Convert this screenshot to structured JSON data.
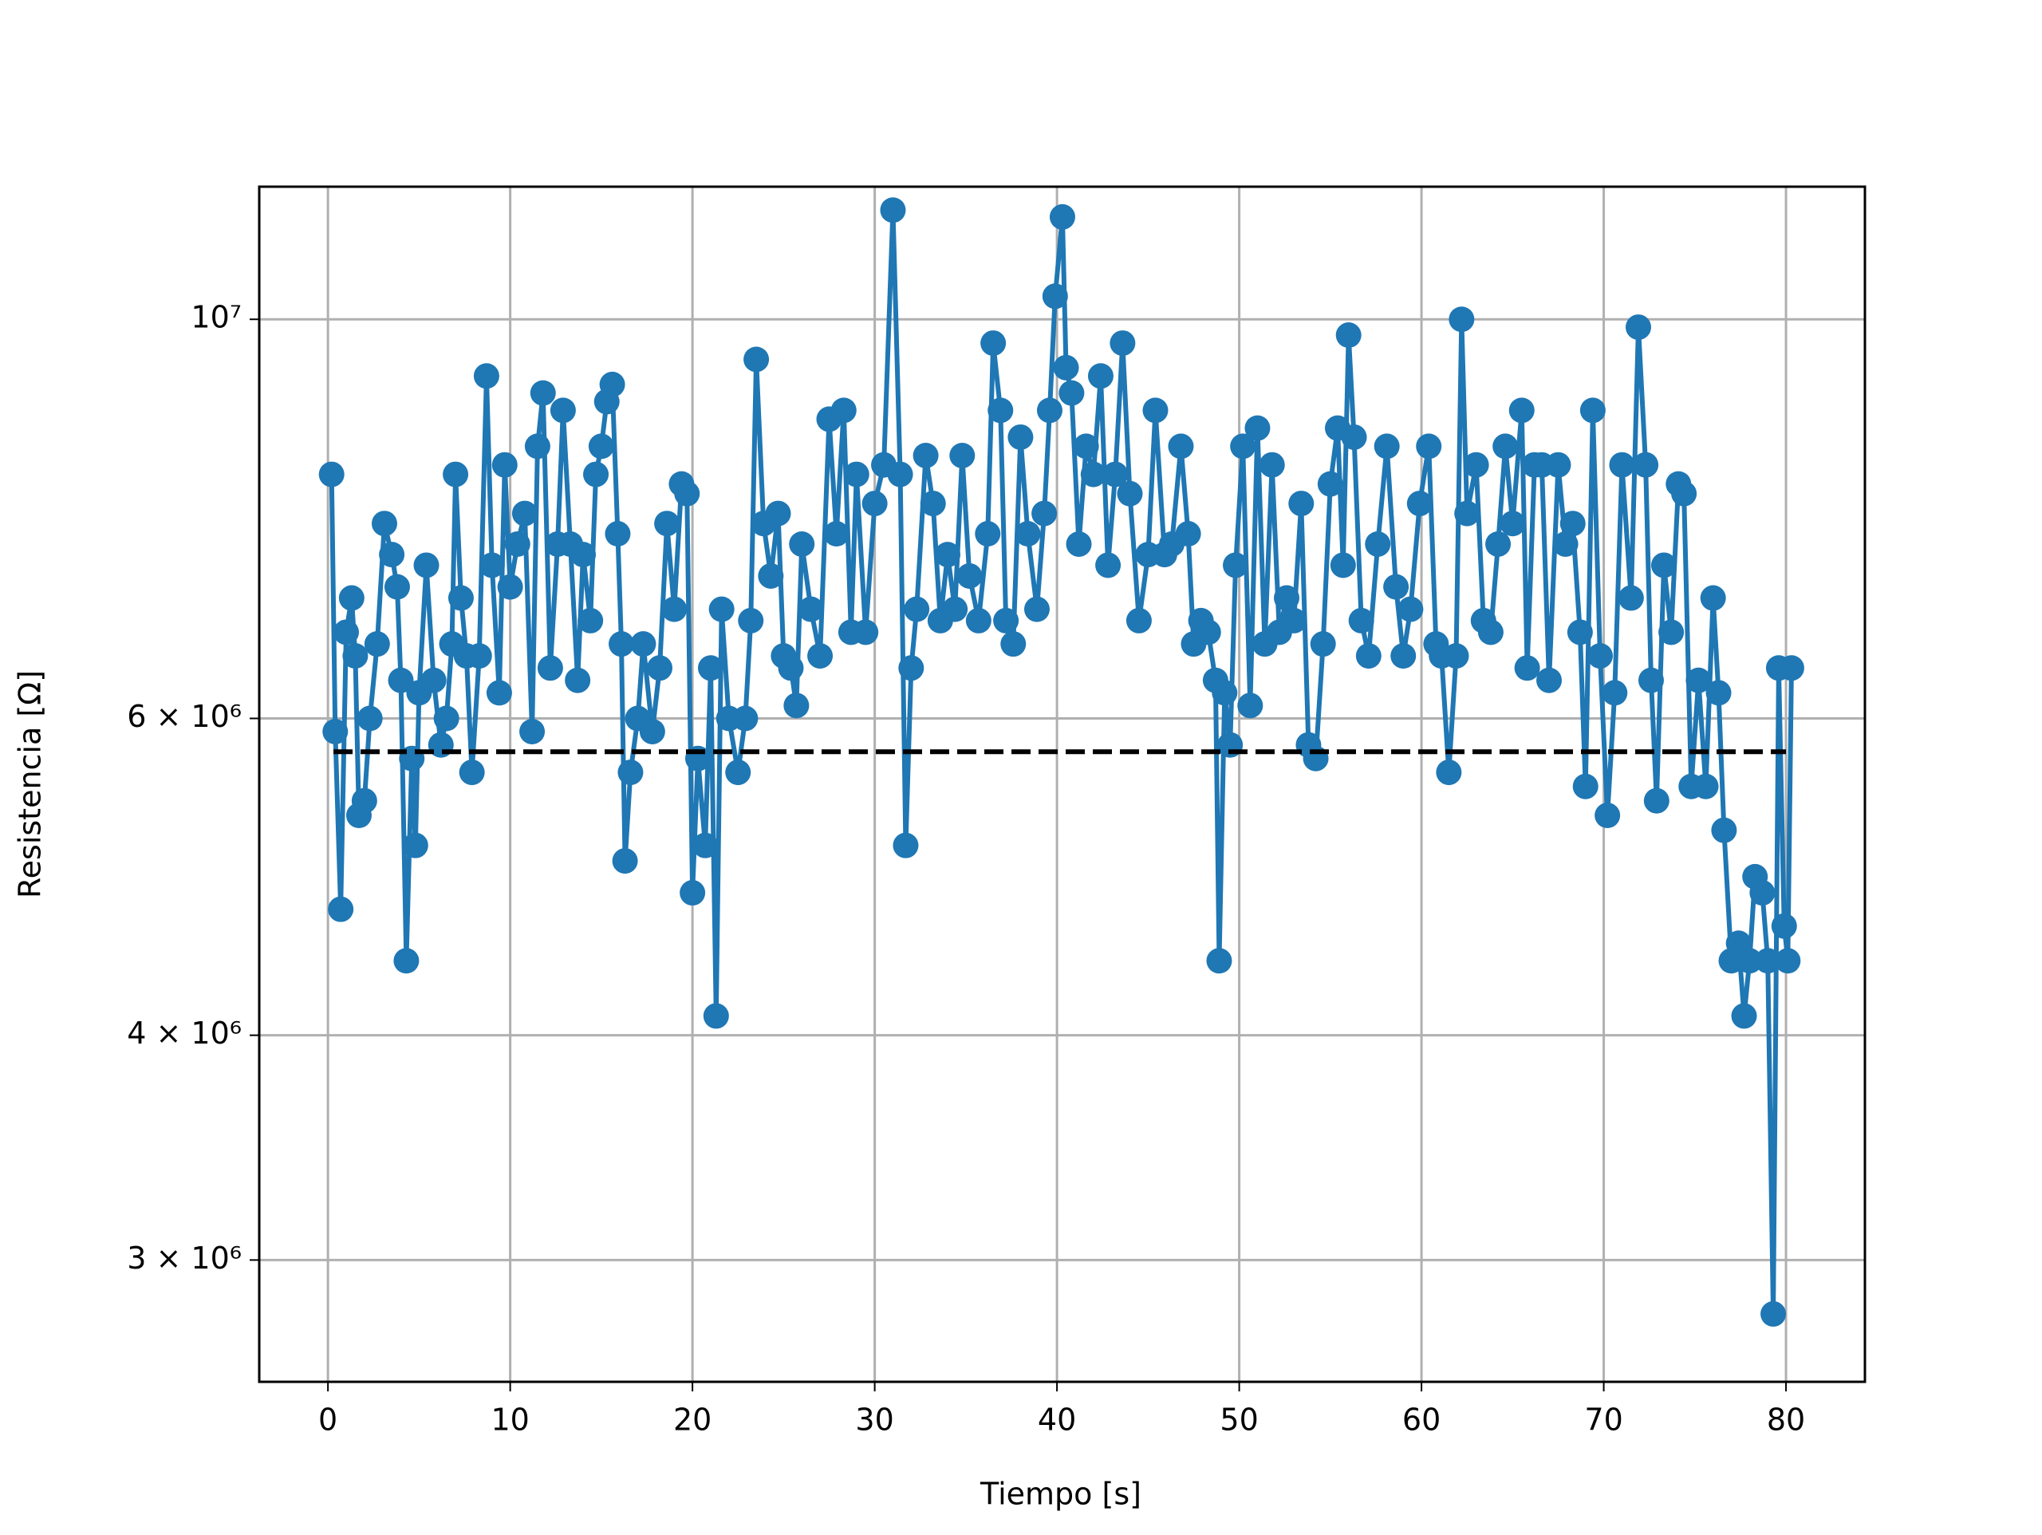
{
  "chart_data": {
    "type": "line",
    "xlabel": "Tiempo [s]",
    "ylabel": "Resistencia [Ω]",
    "log_y": true,
    "grid": true,
    "xlim": [
      -3.77,
      84.33
    ],
    "xticks": [
      0,
      10,
      20,
      30,
      40,
      50,
      60,
      70,
      80
    ],
    "ylim": [
      2567000.0,
      11850000.0
    ],
    "yticks": [
      {
        "value": 3000000.0,
        "label": "3 × 10⁶"
      },
      {
        "value": 4000000.0,
        "label": "4 × 10⁶"
      },
      {
        "value": 6000000.0,
        "label": "6 × 10⁶"
      },
      {
        "value": 10000000.0,
        "label": "10⁷"
      }
    ],
    "x": [
      0.2,
      0.4,
      0.7,
      1.0,
      1.3,
      1.5,
      1.7,
      2.0,
      2.3,
      2.7,
      3.1,
      3.5,
      3.8,
      4.0,
      4.3,
      4.6,
      4.8,
      5.0,
      5.4,
      5.8,
      6.2,
      6.5,
      6.8,
      7.0,
      7.3,
      7.6,
      7.9,
      8.3,
      8.7,
      9.0,
      9.4,
      9.7,
      10.0,
      10.4,
      10.8,
      11.2,
      11.5,
      11.8,
      12.2,
      12.6,
      12.9,
      13.3,
      13.7,
      14.0,
      14.4,
      14.7,
      15.0,
      15.3,
      15.6,
      15.9,
      16.1,
      16.3,
      16.6,
      17.0,
      17.3,
      17.8,
      18.2,
      18.6,
      19.0,
      19.4,
      19.7,
      20.0,
      20.3,
      20.7,
      21.0,
      21.3,
      21.6,
      22.0,
      22.5,
      22.9,
      23.2,
      23.5,
      23.9,
      24.3,
      24.7,
      25.0,
      25.4,
      25.7,
      26.0,
      26.5,
      27.0,
      27.5,
      27.9,
      28.3,
      28.7,
      29.0,
      29.5,
      30.0,
      30.5,
      31.0,
      31.4,
      31.7,
      32.0,
      32.3,
      32.8,
      33.2,
      33.6,
      34.0,
      34.4,
      34.8,
      35.2,
      35.7,
      36.2,
      36.5,
      36.9,
      37.2,
      37.6,
      38.0,
      38.4,
      38.9,
      39.3,
      39.6,
      39.9,
      40.3,
      40.5,
      40.8,
      41.2,
      41.6,
      42.0,
      42.4,
      42.8,
      43.2,
      43.6,
      44.0,
      44.5,
      45.0,
      45.4,
      45.9,
      46.3,
      46.8,
      47.2,
      47.5,
      47.9,
      48.3,
      48.7,
      48.9,
      49.2,
      49.5,
      49.8,
      50.2,
      50.6,
      51.0,
      51.4,
      51.8,
      52.2,
      52.6,
      53.0,
      53.4,
      53.8,
      54.2,
      54.6,
      55.0,
      55.4,
      55.7,
      56.0,
      56.3,
      56.7,
      57.1,
      57.6,
      58.1,
      58.6,
      59.0,
      59.4,
      59.9,
      60.4,
      60.8,
      61.1,
      61.5,
      61.9,
      62.2,
      62.5,
      63.0,
      63.4,
      63.8,
      64.2,
      64.6,
      65.0,
      65.5,
      65.8,
      66.2,
      66.6,
      67.0,
      67.5,
      67.9,
      68.3,
      68.7,
      69.0,
      69.4,
      69.8,
      70.2,
      70.6,
      71.0,
      71.5,
      71.9,
      72.3,
      72.6,
      72.9,
      73.3,
      73.7,
      74.1,
      74.4,
      74.8,
      75.2,
      75.6,
      76.0,
      76.3,
      76.6,
      77.0,
      77.4,
      77.7,
      78.0,
      78.3,
      78.7,
      79.0,
      79.3,
      79.6,
      79.9,
      80.1,
      80.3
    ],
    "series": [
      {
        "color": "#1f77b4",
        "values": [
          8200000.0,
          5900000.0,
          4700000.0,
          6700000.0,
          7000000.0,
          6500000.0,
          5300000.0,
          5400000.0,
          6000000.0,
          6600000.0,
          7700000.0,
          7400000.0,
          7100000.0,
          6300000.0,
          4400000.0,
          5700000.0,
          5100000.0,
          6200000.0,
          7300000.0,
          6300000.0,
          5800000.0,
          6000000.0,
          6600000.0,
          8200000.0,
          7000000.0,
          6500000.0,
          5600000.0,
          6500000.0,
          9300000.0,
          7300000.0,
          6200000.0,
          8300000.0,
          7100000.0,
          7500000.0,
          7800000.0,
          5900000.0,
          8500000.0,
          9100000.0,
          6400000.0,
          7500000.0,
          8900000.0,
          7500000.0,
          6300000.0,
          7400000.0,
          6800000.0,
          8200000.0,
          8500000.0,
          9000000.0,
          9200000.0,
          7600000.0,
          6600000.0,
          5000000.0,
          5600000.0,
          6000000.0,
          6600000.0,
          5900000.0,
          6400000.0,
          7700000.0,
          6900000.0,
          8100000.0,
          8000000.0,
          4800000.0,
          5700000.0,
          5100000.0,
          6400000.0,
          4100000.0,
          6900000.0,
          6000000.0,
          5600000.0,
          6000000.0,
          6800000.0,
          9500000.0,
          7700000.0,
          7200000.0,
          7800000.0,
          6500000.0,
          6400000.0,
          6100000.0,
          7500000.0,
          6900000.0,
          6500000.0,
          8800000.0,
          7600000.0,
          8900000.0,
          6700000.0,
          8200000.0,
          6700000.0,
          7900000.0,
          8300000.0,
          11500000.0,
          8200000.0,
          5100000.0,
          6400000.0,
          6900000.0,
          8400000.0,
          7900000.0,
          6800000.0,
          7400000.0,
          6900000.0,
          8400000.0,
          7200000.0,
          6800000.0,
          7600000.0,
          9700000.0,
          8900000.0,
          6800000.0,
          6600000.0,
          8600000.0,
          7600000.0,
          6900000.0,
          7800000.0,
          8900000.0,
          10300000.0,
          11400000.0,
          9400000.0,
          9100000.0,
          7500000.0,
          8500000.0,
          8200000.0,
          9300000.0,
          7300000.0,
          8200000.0,
          9700000.0,
          8000000.0,
          6800000.0,
          7400000.0,
          8900000.0,
          7400000.0,
          7500000.0,
          8500000.0,
          7600000.0,
          6600000.0,
          6800000.0,
          6700000.0,
          6300000.0,
          4400000.0,
          6200000.0,
          5800000.0,
          7300000.0,
          8500000.0,
          6100000.0,
          8700000.0,
          6600000.0,
          8300000.0,
          6700000.0,
          7000000.0,
          6800000.0,
          7900000.0,
          5800000.0,
          5700000.0,
          6600000.0,
          8100000.0,
          8700000.0,
          7300000.0,
          9800000.0,
          8600000.0,
          6800000.0,
          6500000.0,
          7500000.0,
          8500000.0,
          7100000.0,
          6500000.0,
          6900000.0,
          7900000.0,
          8500000.0,
          6600000.0,
          6500000.0,
          5600000.0,
          6500000.0,
          10000000.0,
          7800000.0,
          8300000.0,
          6800000.0,
          6700000.0,
          7500000.0,
          8500000.0,
          7700000.0,
          8900000.0,
          6400000.0,
          8300000.0,
          8300000.0,
          6300000.0,
          8300000.0,
          7500000.0,
          7700000.0,
          6700000.0,
          5500000.0,
          8900000.0,
          6500000.0,
          5300000.0,
          6200000.0,
          8300000.0,
          7000000.0,
          9900000.0,
          8300000.0,
          6300000.0,
          5400000.0,
          7300000.0,
          6700000.0,
          8100000.0,
          8000000.0,
          5500000.0,
          6300000.0,
          5500000.0,
          7000000.0,
          6200000.0,
          5200000.0,
          4400000.0,
          4500000.0,
          4100000.0,
          4400000.0,
          4900000.0,
          4800000.0,
          4400000.0,
          2800000.0,
          6400000.0,
          4600000.0,
          4400000.0,
          6400000.0
        ]
      }
    ],
    "hline": {
      "value": 5750000.0,
      "x": [
        0.3,
        80
      ],
      "color": "#000000",
      "dashed": true
    }
  }
}
